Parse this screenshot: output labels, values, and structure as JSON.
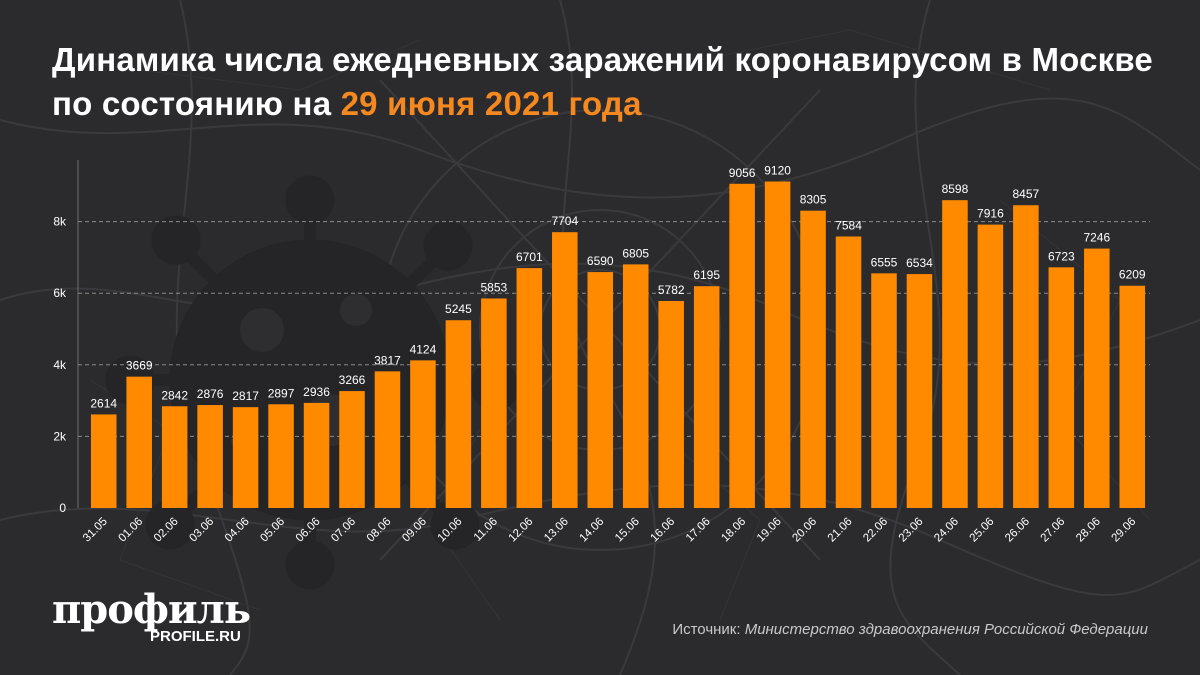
{
  "header": {
    "title_main": "Динамика числа ежедневных заражений коронавирусом в Москве по состоянию на ",
    "title_highlight": "29 июня 2021 года"
  },
  "colors": {
    "background": "#2b2b2e",
    "bar": "#ff8a00",
    "highlight": "#f5891f",
    "grid": "#8a8a8a",
    "text": "#ffffff"
  },
  "chart_data": {
    "type": "bar",
    "categories": [
      "31.05",
      "01.06",
      "02.06",
      "03.06",
      "04.06",
      "05.06",
      "06.06",
      "07.06",
      "08.06",
      "09.06",
      "10.06",
      "11.06",
      "12.06",
      "13.06",
      "14.06",
      "15.06",
      "16.06",
      "17.06",
      "18.06",
      "19.06",
      "20.06",
      "21.06",
      "22.06",
      "23.06",
      "24.06",
      "25.06",
      "26.06",
      "27.06",
      "28.06",
      "29.06"
    ],
    "values": [
      2614,
      3669,
      2842,
      2876,
      2817,
      2897,
      2936,
      3266,
      3817,
      4124,
      5245,
      5853,
      6701,
      7704,
      6590,
      6805,
      5782,
      6195,
      9056,
      9120,
      8305,
      7584,
      6555,
      6534,
      8598,
      7916,
      8457,
      6723,
      7246,
      6209
    ],
    "ylim": [
      0,
      10000
    ],
    "yticks": [
      0,
      2000,
      4000,
      6000,
      8000
    ],
    "ytick_labels": [
      "0",
      "2k",
      "4k",
      "6k",
      "8k"
    ],
    "grid": true,
    "xlabel": "",
    "ylabel": ""
  },
  "footer": {
    "logo": "профиль",
    "logo_sub": "PROFILE.RU",
    "source_label": "Источник: ",
    "source_value": "Министерство здравоохранения Российской Федерации"
  },
  "decor": {
    "background_icons": [
      "city-map-icon",
      "virus-icon"
    ]
  }
}
